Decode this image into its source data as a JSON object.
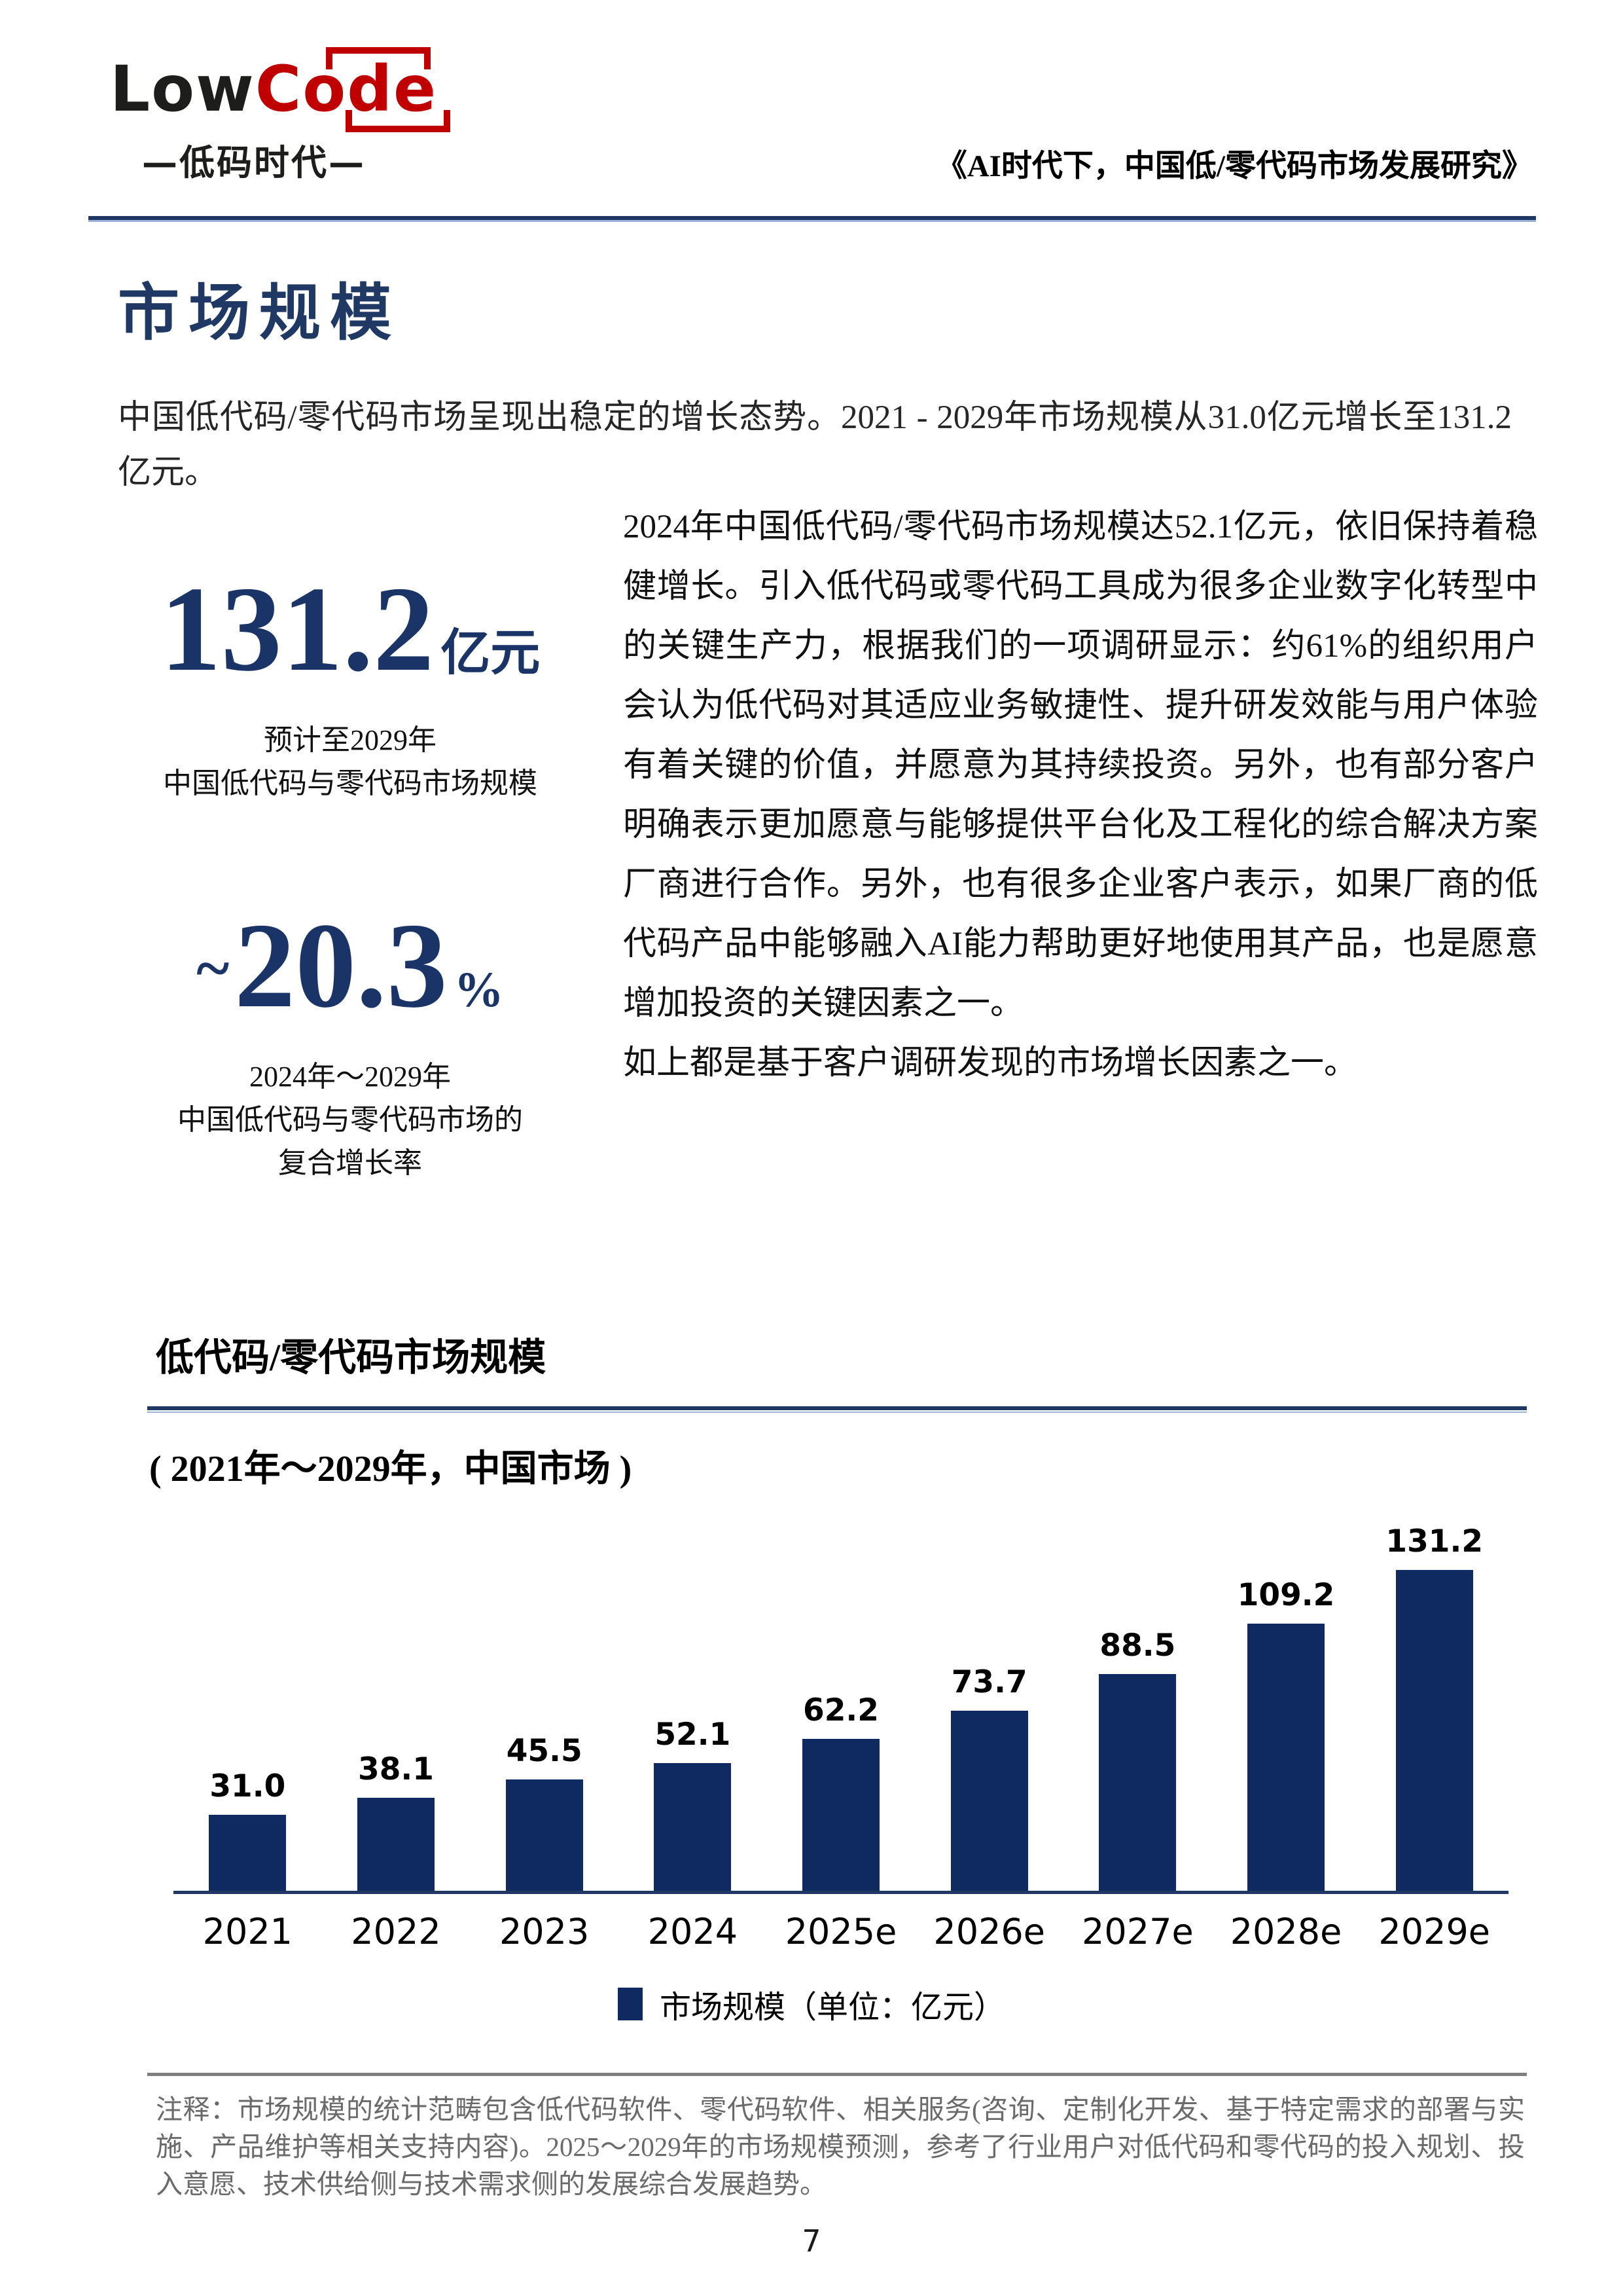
{
  "header": {
    "logo": {
      "part1": "Low",
      "part2": "Code",
      "subtitle": "—低码时代—"
    },
    "doc_title": "《AI时代下，中国低/零代码市场发展研究》"
  },
  "section": {
    "title": "市场规模",
    "intro": "中国低代码/零代码市场呈现出稳定的增长态势。2021 - 2029年市场规模从31.0亿元增长至131.2亿元。"
  },
  "stats": [
    {
      "prefix": "",
      "value": "131.2",
      "unit": "亿元",
      "caption_lines": [
        "预计至2029年",
        "中国低代码与零代码市场规模"
      ]
    },
    {
      "prefix": "~",
      "value": "20.3",
      "unit": "%",
      "caption_lines": [
        "2024年～2029年",
        "中国低代码与零代码市场的",
        "复合增长率"
      ]
    }
  ],
  "body_paragraphs": [
    "2024年中国低代码/零代码市场规模达52.1亿元，依旧保持着稳健增长。引入低代码或零代码工具成为很多企业数字化转型中的关键生产力，根据我们的一项调研显示：约61%的组织用户会认为低代码对其适应业务敏捷性、提升研发效能与用户体验有着关键的价值，并愿意为其持续投资。另外，也有部分客户明确表示更加愿意与能够提供平台化及工程化的综合解决方案厂商进行合作。另外，也有很多企业客户表示，如果厂商的低代码产品中能够融入AI能力帮助更好地使用其产品，也是愿意增加投资的关键因素之一。",
    "如上都是基于客户调研发现的市场增长因素之一。"
  ],
  "chart": {
    "title": "低代码/零代码市场规模",
    "subtitle": "( 2021年～2029年，中国市场 )",
    "legend": "市场规模（单位：亿元）"
  },
  "chart_data": {
    "type": "bar",
    "title": "低代码/零代码市场规模",
    "subtitle": "( 2021年～2029年，中国市场 )",
    "categories": [
      "2021",
      "2022",
      "2023",
      "2024",
      "2025e",
      "2026e",
      "2027e",
      "2028e",
      "2029e"
    ],
    "values": [
      31.0,
      38.1,
      45.5,
      52.1,
      62.2,
      73.7,
      88.5,
      109.2,
      131.2
    ],
    "unit": "亿元",
    "ylabel": "",
    "xlabel": "",
    "ylim": [
      0,
      140
    ],
    "grid": false,
    "data_labels": true,
    "legend": [
      "市场规模（单位：亿元）"
    ],
    "legend_position": "bottom",
    "bar_color": "#0f2a60"
  },
  "footnote": "注释：市场规模的统计范畴包含低代码软件、零代码软件、相关服务(咨询、定制化开发、基于特定需求的部署与实施、产品维护等相关支持内容)。2025～2029年的市场规模预测，参考了行业用户对低代码和零代码的投入规划、投入意愿、技术供给侧与技术需求侧的发展综合发展趋势。",
  "page_number": "7",
  "colors": {
    "accent_navy": "#1f3864",
    "stat_navy": "#1b3468",
    "bar_navy": "#0f2a60",
    "logo_red": "#c00000",
    "footnote_gray": "#6a6a6a"
  }
}
